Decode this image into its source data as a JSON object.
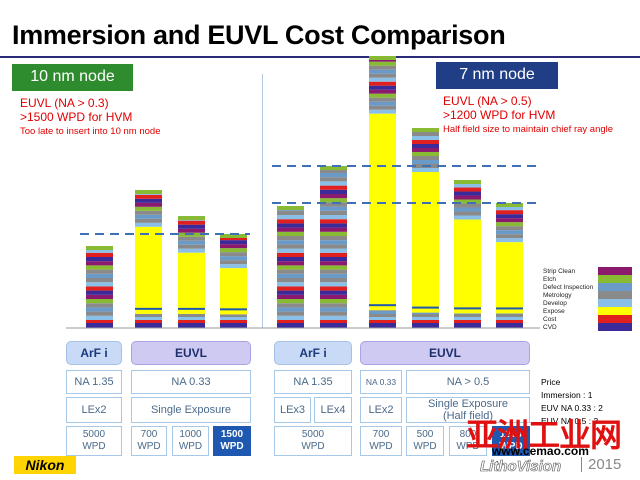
{
  "title": "Immersion and EUVL Cost Comparison",
  "node10": {
    "label": "10 nm node",
    "line1": "EUVL (NA > 0.3)",
    "line2": ">1500 WPD for HVM",
    "line3": "Too late to insert into 10 nm node"
  },
  "node7": {
    "label": "7 nm node",
    "line1": "EUVL (NA > 0.5)",
    "line2": ">1200 WPD for HVM",
    "line3": "Half field size to maintain chief ray angle"
  },
  "colors": {
    "cvd": "#3a2a9a",
    "cost": "#e01f1f",
    "expose": "#ffff00",
    "develop": "#8ac0e8",
    "metrology": "#8a8a8a",
    "defect": "#6a9ac8",
    "etch": "#88bb33",
    "strip": "#8b1a6e",
    "dashed": "#3f6fb5"
  },
  "chart_data": {
    "type": "stacked-bar",
    "legend": [
      "Strip Clean",
      "Etch",
      "Defect Inspection",
      "Metrology",
      "Develop",
      "Expose",
      "Cost",
      "CVD"
    ],
    "groups": [
      {
        "node": "10 nm",
        "bars": [
          {
            "label": "ArF i LEx2",
            "total": 82,
            "expose_share": 0.0
          },
          {
            "label": "EUVL 700 WPD",
            "total": 138,
            "expose_share": 0.68
          },
          {
            "label": "EUVL 1000 WPD",
            "total": 112,
            "expose_share": 0.6
          },
          {
            "label": "EUVL 1500 WPD",
            "total": 94,
            "expose_share": 0.55
          }
        ]
      },
      {
        "node": "7 nm",
        "bars": [
          {
            "label": "ArF i LEx3",
            "total": 122,
            "expose_share": 0.0
          },
          {
            "label": "ArF i LEx4",
            "total": 162,
            "expose_share": 0.0
          },
          {
            "label": "EUVL 700 WPD",
            "total": 272,
            "expose_share": 0.75
          },
          {
            "label": "EUVL 500 WPD",
            "total": 200,
            "expose_share": 0.74
          },
          {
            "label": "EUVL 800 WPD",
            "total": 148,
            "expose_share": 0.68
          },
          {
            "label": "EUVL 1200 WPD",
            "total": 125,
            "expose_share": 0.62
          }
        ]
      }
    ],
    "dashed_lines": [
      {
        "node": "10 nm",
        "value": 94
      },
      {
        "node": "7 nm",
        "value": 125
      },
      {
        "node": "7 nm",
        "value": 162
      }
    ]
  },
  "table": {
    "arfi": "ArF i",
    "euvl": "EUVL",
    "na135": "NA 1.35",
    "na033": "NA 0.33",
    "na033s": "NA 0.33",
    "na05": "NA >  0.5",
    "lex2": "LEx2",
    "lex3": "LEx3",
    "lex4": "LEx4",
    "single": "Single Exposure",
    "single_half_1": "Single Exposure",
    "single_half_2": "(Half field)",
    "wpd5000": "5000",
    "wpd700": "700",
    "wpd1000": "1000",
    "wpd1500": "1500",
    "wpd500": "500",
    "wpd800": "800",
    "wpd1200": "1200",
    "wpd": "WPD"
  },
  "price": {
    "title": "Price",
    "line1": "Immersion : 1",
    "line2": "EUV NA 0.33 : 2",
    "line3": "EUV NA 0.5 : 3"
  },
  "footer": {
    "nikon": "Nikon",
    "wm1": "亚洲工业网",
    "wm2": "www.cemao.com",
    "litho": "LithoVision",
    "year": "2015"
  }
}
